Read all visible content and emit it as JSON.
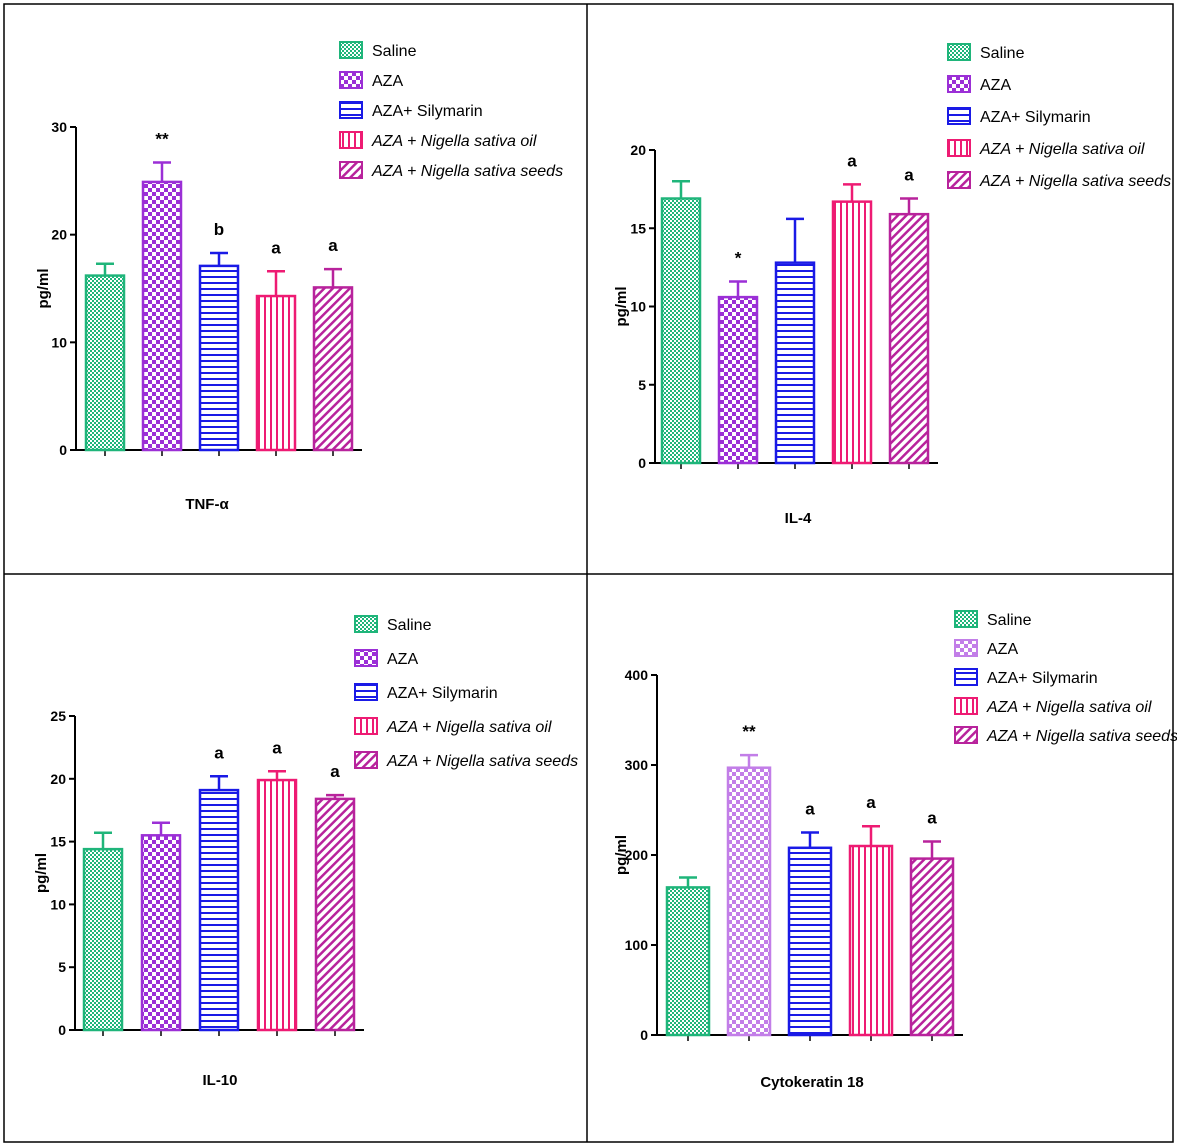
{
  "colors": {
    "saline": "#1fb57a",
    "aza": "#9b2fd6",
    "aza_cyto": "#c27ee8",
    "silymarin": "#1a1ae6",
    "oil": "#ee1b73",
    "seeds": "#b8239c"
  },
  "legend": {
    "saline": "Saline",
    "aza": "AZA",
    "silymarin": "AZA+ Silymarin",
    "oil_prefix": "AZA + ",
    "oil_italic": "Nigella sativa oil",
    "seeds_prefix": "AZA + ",
    "seeds_italic": "Nigella sativa seeds"
  },
  "chart_data": [
    {
      "type": "bar",
      "title": "TNF-α",
      "ylabel": "pg/ml",
      "ylim": [
        0,
        30
      ],
      "yticks": [
        0,
        10,
        20,
        30
      ],
      "categories": [
        "Saline",
        "AZA",
        "AZA+ Silymarin",
        "AZA + Nigella sativa oil",
        "AZA + Nigella sativa seeds"
      ],
      "values": [
        16.2,
        24.9,
        17.1,
        14.3,
        15.1
      ],
      "errors": [
        1.1,
        1.8,
        1.2,
        2.3,
        1.7
      ],
      "annotations": [
        "",
        "**",
        "b",
        "a",
        "a"
      ]
    },
    {
      "type": "bar",
      "title": "IL-4",
      "ylabel": "pg/ml",
      "ylim": [
        0,
        20
      ],
      "yticks": [
        0,
        5,
        10,
        15,
        20
      ],
      "categories": [
        "Saline",
        "AZA",
        "AZA+ Silymarin",
        "AZA + Nigella sativa oil",
        "AZA + Nigella sativa seeds"
      ],
      "values": [
        16.9,
        10.6,
        12.8,
        16.7,
        15.9
      ],
      "errors": [
        1.1,
        1.0,
        2.8,
        1.1,
        1.0
      ],
      "annotations": [
        "",
        "*",
        "",
        "a",
        "a"
      ]
    },
    {
      "type": "bar",
      "title": "IL-10",
      "ylabel": "pg/ml",
      "ylim": [
        0,
        25
      ],
      "yticks": [
        0,
        5,
        10,
        15,
        20,
        25
      ],
      "categories": [
        "Saline",
        "AZA",
        "AZA+ Silymarin",
        "AZA + Nigella sativa oil",
        "AZA + Nigella sativa seeds"
      ],
      "values": [
        14.4,
        15.5,
        19.1,
        19.9,
        18.4
      ],
      "errors": [
        1.3,
        1.0,
        1.1,
        0.7,
        0.3
      ],
      "annotations": [
        "",
        "",
        "a",
        "a",
        "a"
      ]
    },
    {
      "type": "bar",
      "title": "Cytokeratin 18",
      "ylabel": "pg/ml",
      "ylim": [
        0,
        400
      ],
      "yticks": [
        0,
        100,
        200,
        300,
        400
      ],
      "categories": [
        "Saline",
        "AZA",
        "AZA+ Silymarin",
        "AZA + Nigella sativa oil",
        "AZA + Nigella sativa seeds"
      ],
      "values": [
        164,
        297,
        208,
        210,
        196
      ],
      "errors": [
        11,
        14,
        17,
        22,
        19
      ],
      "annotations": [
        "",
        "**",
        "a",
        "a",
        "a"
      ]
    }
  ]
}
